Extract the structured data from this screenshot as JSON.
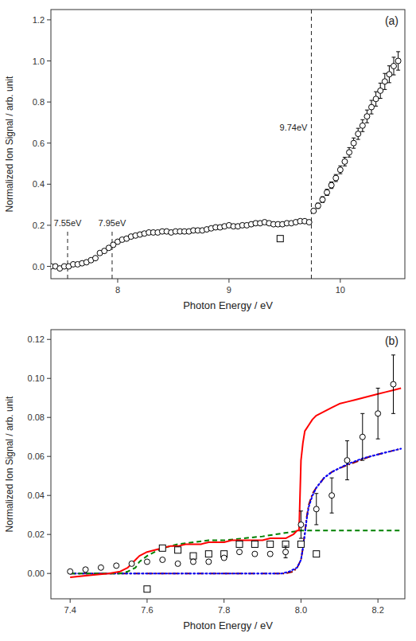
{
  "chart_data": [
    {
      "type": "scatter",
      "title": "(a)",
      "xlabel": "Photon Energy / eV",
      "ylabel": "Normalized Ion Signal / arb. unit",
      "xlim": [
        7.4,
        10.58
      ],
      "ylim": [
        -0.06,
        1.25
      ],
      "xticks": [
        8,
        9,
        10
      ],
      "yticks": [
        {
          "value": 0.0,
          "label": "0.0"
        },
        0.2,
        0.4,
        0.6,
        0.8,
        {
          "value": 1.0,
          "label": "1.0"
        },
        1.2
      ],
      "grid": false,
      "series": [
        {
          "type": "scatter",
          "marker": "circle",
          "color": "black",
          "x": [
            7.4,
            7.44,
            7.48,
            7.52,
            7.56,
            7.6,
            7.64,
            7.68,
            7.72,
            7.76,
            7.8,
            7.84,
            7.88,
            7.92,
            7.96,
            8.0,
            8.04,
            8.08,
            8.12,
            8.16,
            8.2,
            8.24,
            8.28,
            8.32,
            8.36,
            8.4,
            8.44,
            8.48,
            8.52,
            8.56,
            8.6,
            8.64,
            8.68,
            8.72,
            8.76,
            8.8,
            8.84,
            8.88,
            8.92,
            8.96,
            9.0,
            9.04,
            9.08,
            9.12,
            9.16,
            9.2,
            9.24,
            9.28,
            9.32,
            9.36,
            9.4,
            9.44,
            9.48,
            9.52,
            9.56,
            9.6,
            9.64,
            9.68,
            9.72,
            9.76,
            9.8,
            9.84,
            9.88,
            9.92,
            9.96,
            10.0,
            10.04,
            10.08,
            10.12,
            10.16,
            10.2,
            10.24,
            10.28,
            10.32,
            10.36,
            10.4,
            10.44,
            10.48,
            10.52
          ],
          "values": [
            0.0,
            0.0,
            -0.01,
            0.0,
            0.0,
            0.01,
            0.01,
            0.015,
            0.02,
            0.03,
            0.04,
            0.065,
            0.075,
            0.09,
            0.105,
            0.12,
            0.13,
            0.135,
            0.145,
            0.15,
            0.155,
            0.16,
            0.165,
            0.165,
            0.165,
            0.17,
            0.17,
            0.165,
            0.17,
            0.17,
            0.17,
            0.17,
            0.175,
            0.175,
            0.175,
            0.18,
            0.185,
            0.19,
            0.19,
            0.195,
            0.2,
            0.195,
            0.195,
            0.2,
            0.2,
            0.205,
            0.21,
            0.21,
            0.215,
            0.21,
            0.205,
            0.205,
            0.205,
            0.21,
            0.21,
            0.215,
            0.22,
            0.22,
            0.215,
            0.27,
            0.295,
            0.325,
            0.36,
            0.395,
            0.43,
            0.47,
            0.51,
            0.555,
            0.6,
            0.645,
            0.685,
            0.73,
            0.775,
            0.815,
            0.855,
            0.9,
            0.935,
            0.975,
            1.0
          ],
          "errors": [
            0.004,
            0.004,
            0.004,
            0.004,
            0.004,
            0.004,
            0.004,
            0.004,
            0.004,
            0.004,
            0.005,
            0.006,
            0.006,
            0.006,
            0.006,
            0.007,
            0.007,
            0.007,
            0.007,
            0.007,
            0.007,
            0.007,
            0.007,
            0.007,
            0.007,
            0.007,
            0.007,
            0.007,
            0.007,
            0.007,
            0.007,
            0.007,
            0.007,
            0.007,
            0.007,
            0.007,
            0.007,
            0.007,
            0.007,
            0.007,
            0.007,
            0.007,
            0.007,
            0.007,
            0.007,
            0.007,
            0.007,
            0.007,
            0.007,
            0.007,
            0.007,
            0.007,
            0.007,
            0.007,
            0.007,
            0.007,
            0.007,
            0.007,
            0.007,
            0.01,
            0.013,
            0.014,
            0.015,
            0.016,
            0.017,
            0.019,
            0.021,
            0.023,
            0.025,
            0.027,
            0.029,
            0.031,
            0.033,
            0.035,
            0.037,
            0.039,
            0.041,
            0.043,
            0.045
          ]
        },
        {
          "type": "scatter",
          "marker": "square",
          "color": "black",
          "x": [
            9.46
          ],
          "values": [
            0.135
          ]
        }
      ],
      "annotations": [
        {
          "x": 7.55,
          "y0": -0.06,
          "y1": 0.175,
          "text": "7.55eV"
        },
        {
          "x": 7.95,
          "y0": -0.06,
          "y1": 0.175,
          "text": "7.95eV"
        },
        {
          "x": 9.74,
          "text": "9.74eV"
        }
      ]
    },
    {
      "type": "scatter",
      "title": "(b)",
      "xlabel": "Photon Energy / eV",
      "ylabel": "Normalized Ion Signal / arb. unit",
      "xlim": [
        7.35,
        8.27
      ],
      "ylim": [
        -0.013,
        0.125
      ],
      "xticks": [
        7.4,
        7.6,
        7.8,
        {
          "value": 8.0,
          "label": "8.0"
        },
        8.2
      ],
      "yticks": [
        {
          "value": 0.0,
          "label": "0.00"
        },
        0.02,
        0.04,
        0.06,
        0.08,
        {
          "value": 0.1,
          "label": "0.10"
        },
        0.12
      ],
      "grid": false,
      "series": [
        {
          "type": "scatter",
          "marker": "circle",
          "color": "black",
          "x": [
            7.4,
            7.44,
            7.48,
            7.52,
            7.56,
            7.6,
            7.64,
            7.68,
            7.72,
            7.76,
            7.8,
            7.84,
            7.88,
            7.92,
            7.96,
            8.0,
            8.04,
            8.08,
            8.12,
            8.16,
            8.2,
            8.24
          ],
          "values": [
            0.001,
            0.002,
            0.003,
            0.004,
            0.005,
            0.006,
            0.007,
            0.005,
            0.006,
            0.006,
            0.008,
            0.011,
            0.01,
            0.01,
            0.011,
            0.025,
            0.033,
            0.04,
            0.058,
            0.07,
            0.082,
            0.097
          ],
          "errors_low": [
            0.0,
            0.0,
            0.0,
            0.0,
            0.0,
            0.0,
            0.0,
            0.0,
            0.0,
            0.0,
            0.0,
            0.0,
            0.0,
            0.0,
            0.003,
            0.007,
            0.008,
            0.009,
            0.01,
            0.012,
            0.013,
            0.015
          ],
          "errors_high": [
            0.0,
            0.0,
            0.0,
            0.0,
            0.0,
            0.0,
            0.0,
            0.0,
            0.0,
            0.0,
            0.0,
            0.0,
            0.0,
            0.0,
            0.003,
            0.007,
            0.008,
            0.009,
            0.01,
            0.012,
            0.013,
            0.015
          ]
        },
        {
          "type": "scatter",
          "marker": "square",
          "color": "black",
          "x": [
            7.6,
            7.64,
            7.68,
            7.72,
            7.76,
            7.8,
            7.84,
            7.88,
            7.92,
            7.96,
            8.0,
            8.04
          ],
          "values": [
            -0.008,
            0.013,
            0.012,
            0.009,
            0.01,
            0.01,
            0.015,
            0.015,
            0.015,
            0.015,
            0.015,
            0.01
          ]
        },
        {
          "type": "line",
          "line_style": "solid",
          "color": "red",
          "x": [
            7.4,
            7.45,
            7.5,
            7.53,
            7.55,
            7.56,
            7.57,
            7.58,
            7.6,
            7.62,
            7.64,
            7.66,
            7.68,
            7.7,
            7.72,
            7.74,
            7.76,
            7.78,
            7.8,
            7.82,
            7.84,
            7.86,
            7.88,
            7.9,
            7.92,
            7.94,
            7.96,
            7.97,
            7.98,
            7.985,
            7.99,
            7.995,
            8.0,
            8.005,
            8.01,
            8.02,
            8.03,
            8.04,
            8.06,
            8.08,
            8.1,
            8.12,
            8.14,
            8.16,
            8.18,
            8.2,
            8.22,
            8.24,
            8.26
          ],
          "values": [
            -0.002,
            -0.001,
            0.0,
            0.001,
            0.003,
            0.005,
            0.007,
            0.009,
            0.011,
            0.012,
            0.013,
            0.014,
            0.014,
            0.015,
            0.015,
            0.015,
            0.016,
            0.016,
            0.016,
            0.017,
            0.017,
            0.017,
            0.017,
            0.017,
            0.018,
            0.018,
            0.018,
            0.019,
            0.02,
            0.021,
            0.022,
            0.022,
            0.058,
            0.067,
            0.073,
            0.076,
            0.079,
            0.081,
            0.083,
            0.085,
            0.087,
            0.088,
            0.089,
            0.09,
            0.091,
            0.092,
            0.093,
            0.094,
            0.095
          ]
        },
        {
          "type": "line",
          "line_style": "dashed",
          "color": "green",
          "x": [
            7.4,
            7.5,
            7.53,
            7.55,
            7.57,
            7.58,
            7.6,
            7.62,
            7.64,
            7.68,
            7.72,
            7.76,
            7.8,
            7.9,
            8.0,
            8.1,
            8.2,
            8.26
          ],
          "values": [
            0.0,
            0.0,
            0.0,
            0.001,
            0.003,
            0.006,
            0.009,
            0.011,
            0.013,
            0.015,
            0.016,
            0.017,
            0.017,
            0.019,
            0.022,
            0.022,
            0.022,
            0.022
          ]
        },
        {
          "type": "line",
          "line_style": "dotted",
          "color": "blue",
          "x": [
            7.4,
            7.9,
            7.93,
            7.95,
            7.97,
            7.99,
            8.0,
            8.005,
            8.01,
            8.015,
            8.02,
            8.03,
            8.04,
            8.06,
            8.08,
            8.1,
            8.12,
            8.16,
            8.2,
            8.24,
            8.26
          ],
          "values": [
            0.0,
            0.0,
            0.0,
            0.0,
            0.001,
            0.003,
            0.007,
            0.013,
            0.02,
            0.028,
            0.034,
            0.04,
            0.044,
            0.049,
            0.052,
            0.054,
            0.056,
            0.059,
            0.061,
            0.063,
            0.064
          ]
        },
        {
          "type": "line",
          "line_style": "dashdot",
          "color": "darkred",
          "x": [
            7.4,
            7.9,
            7.93,
            7.96,
            7.98,
            7.99,
            8.0,
            8.005,
            8.01,
            8.015,
            8.02,
            8.03,
            8.04,
            8.06,
            8.08,
            8.1,
            8.14,
            8.18,
            8.22,
            8.26
          ],
          "values": [
            0.0,
            0.0,
            0.0,
            0.0,
            0.001,
            0.003,
            0.007,
            0.013,
            0.021,
            0.029,
            0.035,
            0.041,
            0.044,
            0.049,
            0.052,
            0.054,
            0.057,
            0.06,
            0.062,
            0.064
          ]
        }
      ]
    }
  ]
}
